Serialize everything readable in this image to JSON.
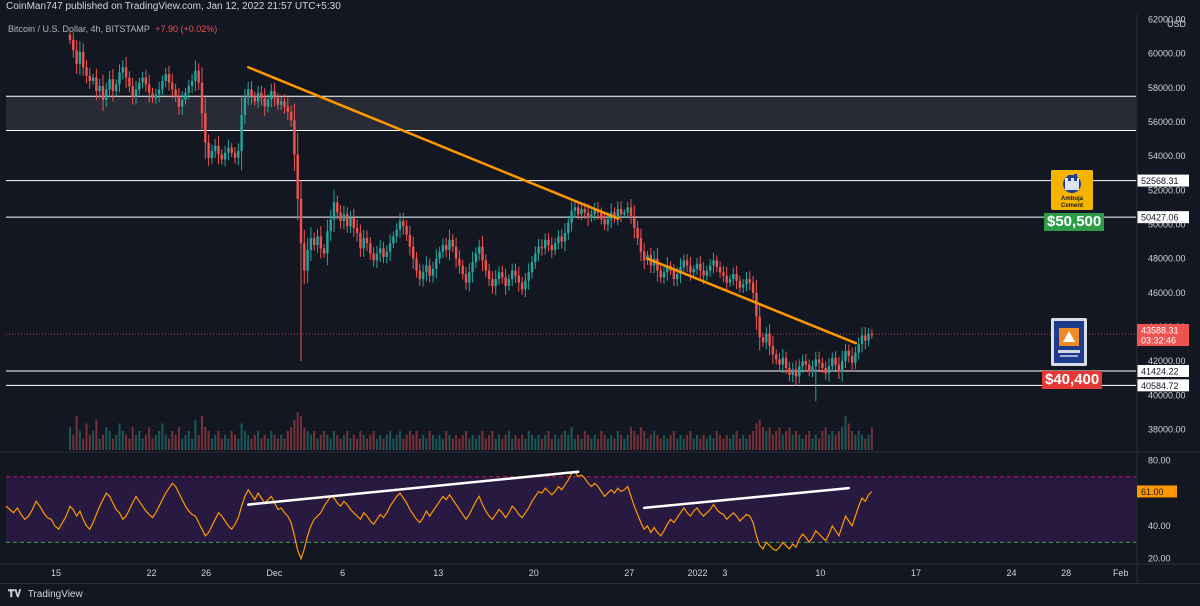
{
  "header": {
    "published": "CoinMan747 published on TradingView.com, Jan 12, 2022 21:57 UTC+5:30",
    "symbol": "Bitcoin / U.S. Dollar, 4h, BITSTAMP",
    "change": "+7.90 (+0.02%)",
    "currency": "USD"
  },
  "footer": {
    "brand": "TradingView"
  },
  "colors": {
    "background": "#131722",
    "bull": "#26a69a",
    "bear": "#ef5350",
    "trendline": "#ff9800",
    "rsi": "#ff9800",
    "rsi_band": "#2b1a45",
    "level": "#ffffff"
  },
  "chart_data": {
    "type": "candlestick",
    "timeframe": "4h",
    "x_ticks": [
      "15",
      "22",
      "26",
      "Dec",
      "6",
      "13",
      "20",
      "27",
      "2022",
      "3",
      "10",
      "17",
      "24",
      "28",
      "Feb"
    ],
    "x_tick_days": [
      0,
      7,
      11,
      16,
      21,
      28,
      35,
      42,
      47,
      49,
      56,
      63,
      70,
      74,
      78
    ],
    "price_axis": {
      "ticks": [
        38000,
        40000,
        42000,
        44000,
        46000,
        48000,
        50000,
        52000,
        54000,
        56000,
        58000,
        60000,
        62000
      ],
      "ylim": [
        36800,
        62200
      ]
    },
    "closes": [
      60800,
      60200,
      59400,
      60100,
      59200,
      58700,
      58400,
      58600,
      57800,
      58100,
      57300,
      57900,
      58500,
      57800,
      58200,
      58900,
      59200,
      58600,
      58100,
      57500,
      57900,
      58300,
      58600,
      58200,
      57700,
      57400,
      57600,
      57900,
      58400,
      58800,
      58300,
      57900,
      57500,
      56900,
      57300,
      57700,
      58100,
      58400,
      59000,
      58300,
      56500,
      54800,
      53900,
      54300,
      54600,
      54100,
      53800,
      54200,
      54500,
      54200,
      53900,
      54300,
      56400,
      57400,
      57900,
      57500,
      57200,
      57700,
      57400,
      56900,
      57300,
      57800,
      57400,
      57000,
      57200,
      56900,
      56600,
      56100,
      54100,
      51500,
      48900,
      47300,
      48500,
      49200,
      48800,
      49300,
      48600,
      48300,
      49600,
      50300,
      51300,
      50700,
      50200,
      50600,
      49900,
      50400,
      49800,
      49500,
      48600,
      49200,
      48900,
      48300,
      47900,
      48300,
      48600,
      48100,
      48400,
      48900,
      49300,
      49700,
      50200,
      49900,
      49400,
      48700,
      48000,
      47300,
      46800,
      47200,
      47600,
      47000,
      47400,
      48000,
      48400,
      48800,
      48500,
      49100,
      48700,
      48000,
      47600,
      47100,
      46600,
      47200,
      47800,
      48300,
      48700,
      47900,
      47300,
      46800,
      46400,
      46800,
      47200,
      46900,
      46400,
      46800,
      47300,
      47000,
      46600,
      46200,
      46700,
      47200,
      47800,
      48300,
      48700,
      48600,
      49100,
      48800,
      48500,
      48900,
      49300,
      49000,
      49500,
      50100,
      50800,
      51000,
      50600,
      50900,
      50700,
      50400,
      50600,
      50900,
      50700,
      50300,
      50000,
      50300,
      50700,
      50400,
      50900,
      50600,
      50700,
      51000,
      50500,
      49800,
      49200,
      48400,
      47900,
      48200,
      47600,
      48000,
      47300,
      46900,
      47200,
      47600,
      47300,
      46800,
      47100,
      47500,
      47900,
      47600,
      47200,
      47400,
      47700,
      47300,
      47000,
      47300,
      47600,
      47900,
      47500,
      47200,
      47000,
      46600,
      46800,
      47100,
      46700,
      46300,
      46500,
      46800,
      46600,
      46000,
      44600,
      43400,
      43100,
      43600,
      42900,
      42400,
      42100,
      41800,
      42200,
      41600,
      41200,
      41500,
      41100,
      41700,
      42000,
      41800,
      41400,
      41700,
      42100,
      41900,
      41600,
      41300,
      41700,
      42200,
      41800,
      41400,
      42000,
      42600,
      42300,
      41900,
      42500,
      43000,
      43500,
      43200,
      43600,
      43588
    ],
    "volume": [
      0.6,
      0.4,
      0.9,
      0.5,
      0.3,
      0.7,
      0.4,
      0.5,
      0.8,
      0.3,
      0.4,
      0.6,
      0.5,
      0.3,
      0.4,
      0.7,
      0.5,
      0.4,
      0.3,
      0.6,
      0.4,
      0.5,
      0.3,
      0.4,
      0.6,
      0.3,
      0.4,
      0.5,
      0.7,
      0.4,
      0.3,
      0.5,
      0.4,
      0.6,
      0.3,
      0.4,
      0.5,
      0.3,
      0.8,
      0.4,
      0.9,
      0.6,
      0.5,
      0.3,
      0.4,
      0.5,
      0.3,
      0.4,
      0.3,
      0.5,
      0.4,
      0.3,
      0.7,
      0.5,
      0.4,
      0.3,
      0.4,
      0.5,
      0.3,
      0.4,
      0.3,
      0.5,
      0.4,
      0.3,
      0.4,
      0.3,
      0.5,
      0.6,
      0.8,
      1.0,
      0.9,
      0.6,
      0.5,
      0.4,
      0.5,
      0.3,
      0.4,
      0.5,
      0.4,
      0.3,
      0.5,
      0.4,
      0.3,
      0.4,
      0.5,
      0.3,
      0.4,
      0.3,
      0.5,
      0.4,
      0.3,
      0.4,
      0.5,
      0.3,
      0.4,
      0.3,
      0.4,
      0.5,
      0.3,
      0.4,
      0.5,
      0.3,
      0.4,
      0.5,
      0.4,
      0.5,
      0.3,
      0.4,
      0.3,
      0.5,
      0.4,
      0.3,
      0.4,
      0.3,
      0.5,
      0.4,
      0.3,
      0.4,
      0.3,
      0.4,
      0.5,
      0.3,
      0.4,
      0.3,
      0.4,
      0.5,
      0.3,
      0.4,
      0.5,
      0.3,
      0.4,
      0.3,
      0.4,
      0.5,
      0.3,
      0.4,
      0.3,
      0.4,
      0.3,
      0.5,
      0.4,
      0.3,
      0.4,
      0.3,
      0.4,
      0.5,
      0.3,
      0.4,
      0.3,
      0.4,
      0.5,
      0.4,
      0.6,
      0.3,
      0.4,
      0.3,
      0.5,
      0.4,
      0.3,
      0.4,
      0.3,
      0.5,
      0.4,
      0.3,
      0.4,
      0.3,
      0.5,
      0.4,
      0.3,
      0.4,
      0.6,
      0.5,
      0.4,
      0.6,
      0.5,
      0.3,
      0.4,
      0.5,
      0.4,
      0.3,
      0.4,
      0.3,
      0.4,
      0.5,
      0.3,
      0.4,
      0.3,
      0.4,
      0.5,
      0.3,
      0.4,
      0.3,
      0.4,
      0.3,
      0.4,
      0.3,
      0.5,
      0.4,
      0.3,
      0.4,
      0.3,
      0.4,
      0.5,
      0.3,
      0.4,
      0.3,
      0.4,
      0.5,
      0.7,
      0.8,
      0.6,
      0.5,
      0.6,
      0.4,
      0.5,
      0.6,
      0.4,
      0.5,
      0.6,
      0.4,
      0.5,
      0.4,
      0.3,
      0.4,
      0.5,
      0.3,
      0.4,
      0.3,
      0.5,
      0.6,
      0.4,
      0.5,
      0.4,
      0.5,
      0.6,
      0.9,
      0.7,
      0.5,
      0.4,
      0.5,
      0.4,
      0.3,
      0.4,
      0.6
    ],
    "current_price": {
      "value": 43588.31,
      "label": "43588.31",
      "countdown": "03:32:46"
    },
    "levels": [
      {
        "value": 57500,
        "label": ""
      },
      {
        "value": 55500,
        "label": ""
      },
      {
        "value": 52568.31,
        "label": "52568.31"
      },
      {
        "value": 50427.06,
        "label": "50427.06"
      },
      {
        "value": 41424.22,
        "label": "41424.22"
      },
      {
        "value": 40584.72,
        "label": "40584.72"
      }
    ],
    "zone": {
      "from": 55500,
      "to": 57500
    },
    "trendlines": [
      {
        "from": {
          "bar": 54,
          "value": 59200
        },
        "to": {
          "bar": 154,
          "value": 51300
        }
      },
      {
        "from": {
          "bar": 175,
          "value": 48000
        },
        "to": {
          "bar": 226,
          "value": 44000
        }
      }
    ],
    "annotations": [
      {
        "text": "$50,500",
        "price": 50500,
        "kind": "green"
      },
      {
        "text": "$40,400",
        "price": 40400,
        "kind": "red"
      }
    ],
    "logos": [
      {
        "name": "ambuja-cement-logo",
        "text_lines": [
          "Ambuja",
          "Cement"
        ]
      },
      {
        "name": "ultratech-cement-logo",
        "text_lines": []
      }
    ],
    "rsi": {
      "ticks": [
        20,
        40,
        60,
        80
      ],
      "ylim": [
        18,
        82
      ],
      "upper": 70,
      "lower": 30,
      "values": [
        52,
        50,
        46,
        49,
        44,
        40,
        38,
        42,
        47,
        52,
        56,
        60,
        58,
        54,
        50,
        48,
        44,
        46,
        50,
        54,
        58,
        55,
        52,
        49,
        47,
        45,
        48,
        52,
        56,
        60,
        63,
        66,
        64,
        60,
        56,
        52,
        49,
        47,
        46,
        42,
        38,
        34,
        36,
        40,
        44,
        48,
        46,
        43,
        40,
        38,
        41,
        45,
        52,
        58,
        62,
        59,
        56,
        60,
        57,
        54,
        56,
        58,
        54,
        50,
        51,
        48,
        46,
        42,
        34,
        25,
        20,
        26,
        34,
        40,
        44,
        46,
        48,
        52,
        55,
        58,
        57,
        54,
        52,
        55,
        53,
        50,
        48,
        46,
        44,
        48,
        46,
        43,
        41,
        44,
        47,
        45,
        48,
        52,
        55,
        58,
        60,
        57,
        54,
        50,
        47,
        44,
        42,
        45,
        49,
        46,
        49,
        52,
        55,
        58,
        56,
        59,
        56,
        53,
        50,
        47,
        44,
        47,
        51,
        55,
        58,
        53,
        49,
        46,
        44,
        47,
        50,
        48,
        45,
        48,
        52,
        50,
        47,
        45,
        48,
        51,
        55,
        58,
        61,
        60,
        63,
        61,
        59,
        61,
        64,
        62,
        65,
        68,
        72,
        73,
        70,
        71,
        69,
        66,
        64,
        66,
        64,
        61,
        58,
        60,
        62,
        60,
        63,
        61,
        62,
        64,
        58,
        52,
        47,
        42,
        38,
        40,
        36,
        39,
        36,
        34,
        37,
        41,
        44,
        42,
        45,
        48,
        51,
        48,
        46,
        49,
        51,
        48,
        46,
        48,
        50,
        53,
        50,
        48,
        47,
        44,
        46,
        48,
        46,
        43,
        45,
        47,
        46,
        42,
        34,
        28,
        26,
        30,
        28,
        26,
        25,
        27,
        30,
        28,
        26,
        29,
        27,
        32,
        35,
        33,
        30,
        33,
        37,
        35,
        33,
        31,
        35,
        40,
        37,
        34,
        40,
        46,
        43,
        40,
        46,
        52,
        57,
        55,
        59,
        61
      ],
      "divergence_lines": [
        {
          "from": {
            "bar": 54,
            "value": 53
          },
          "to": {
            "bar": 154,
            "value": 73
          }
        },
        {
          "from": {
            "bar": 174,
            "value": 51
          },
          "to": {
            "bar": 236,
            "value": 63
          }
        }
      ]
    }
  }
}
